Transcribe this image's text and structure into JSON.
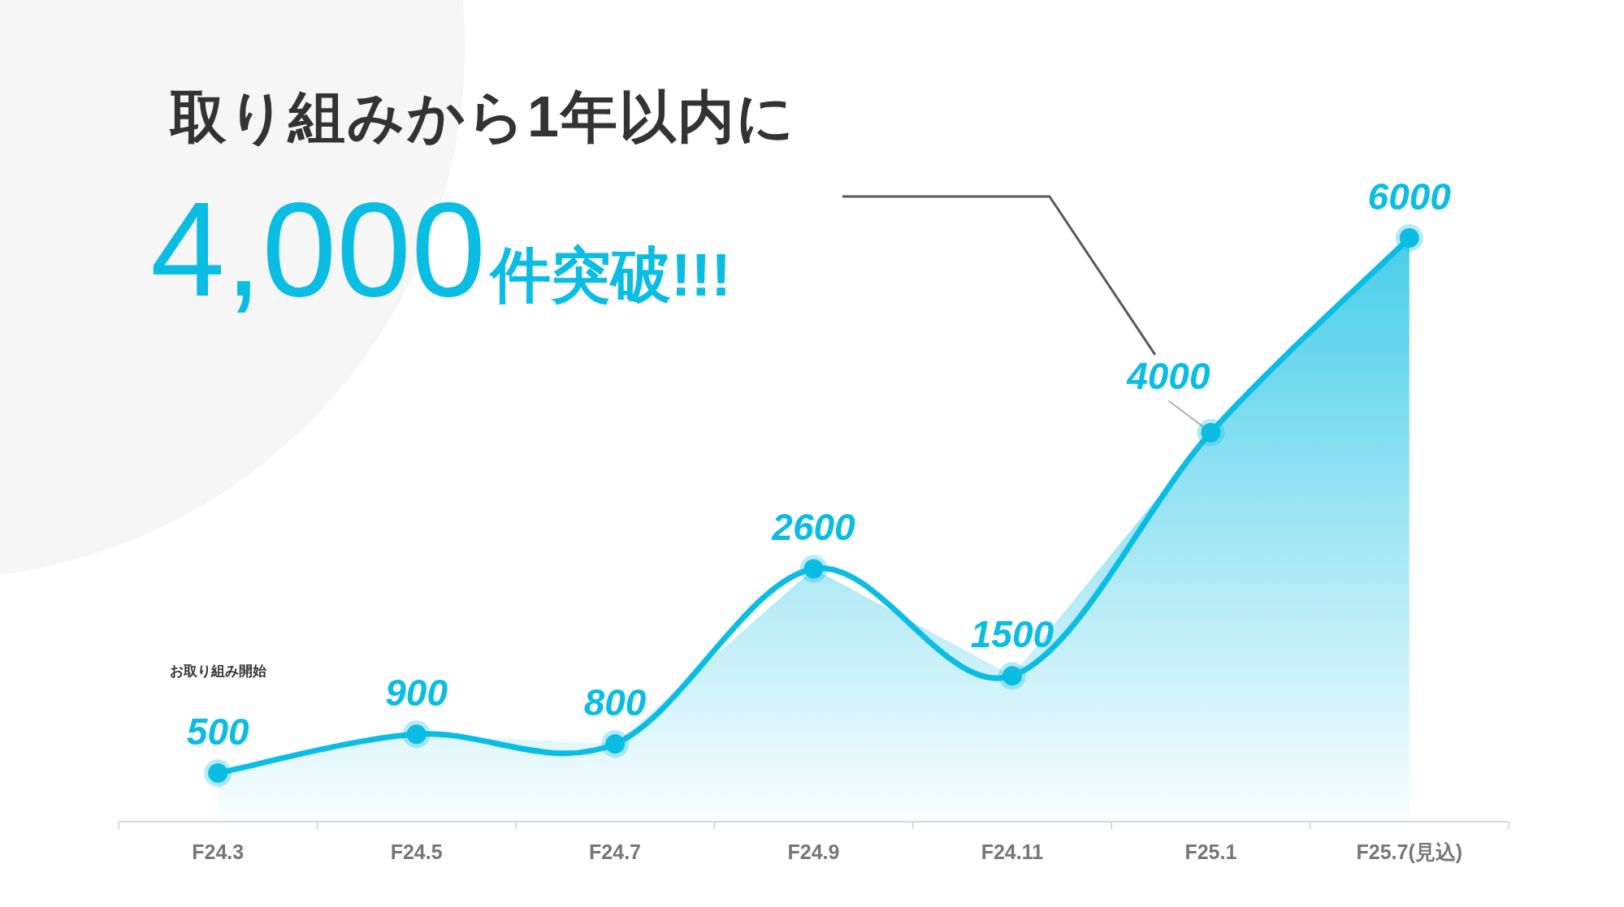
{
  "chart_data": {
    "type": "area",
    "title": "取り組みから1年以内に",
    "categories": [
      "F24.3",
      "F24.5",
      "F24.7",
      "F24.9",
      "F24.11",
      "F25.1",
      "F25.7(見込)"
    ],
    "values": [
      500,
      900,
      800,
      2600,
      1500,
      4000,
      6000
    ],
    "color": "#0bbde3",
    "data_labels": true,
    "marker": "circle",
    "tick_labels": "x",
    "annotations": [
      "4,000件突破!!!",
      "お取り組み開始"
    ]
  }
}
